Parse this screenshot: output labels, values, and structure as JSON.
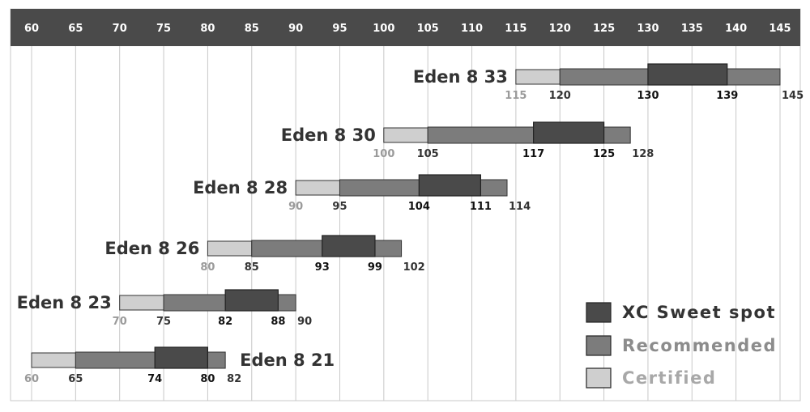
{
  "chart_data": {
    "type": "bar",
    "x_ticks": [
      60,
      65,
      70,
      75,
      80,
      85,
      90,
      95,
      100,
      105,
      110,
      115,
      120,
      125,
      130,
      135,
      140,
      145
    ],
    "xlim": [
      60,
      145
    ],
    "grid": true,
    "legend_position": "bottom-right",
    "legend": [
      {
        "label": "XC Sweet spot",
        "color": "#4a4a4a"
      },
      {
        "label": "Recommended",
        "color": "#7c7c7c"
      },
      {
        "label": "Certified",
        "color": "#cfcfcf"
      }
    ],
    "colors": {
      "header": "#4a4a4a",
      "certified": "#cfcfcf",
      "recommended": "#7c7c7c",
      "sweet_spot": "#4a4a4a",
      "certified_label": "#9a9a9a",
      "label_dark": "#333333"
    },
    "series": [
      {
        "name": "Eden 8 33",
        "certified_min": 115,
        "recommended_min": 120,
        "sweet_min": 130,
        "sweet_max": 139,
        "max": 145,
        "name_side": "left"
      },
      {
        "name": "Eden 8 30",
        "certified_min": 100,
        "recommended_min": 105,
        "sweet_min": 117,
        "sweet_max": 125,
        "max": 128,
        "name_side": "left"
      },
      {
        "name": "Eden 8 28",
        "certified_min": 90,
        "recommended_min": 95,
        "sweet_min": 104,
        "sweet_max": 111,
        "max": 114,
        "name_side": "left"
      },
      {
        "name": "Eden 8 26",
        "certified_min": 80,
        "recommended_min": 85,
        "sweet_min": 93,
        "sweet_max": 99,
        "max": 102,
        "name_side": "left"
      },
      {
        "name": "Eden 8 23",
        "certified_min": 70,
        "recommended_min": 75,
        "sweet_min": 82,
        "sweet_max": 88,
        "max": 90,
        "name_side": "left"
      },
      {
        "name": "Eden 8 21",
        "certified_min": 60,
        "recommended_min": 65,
        "sweet_min": 74,
        "sweet_max": 80,
        "max": 82,
        "name_side": "right"
      }
    ]
  }
}
